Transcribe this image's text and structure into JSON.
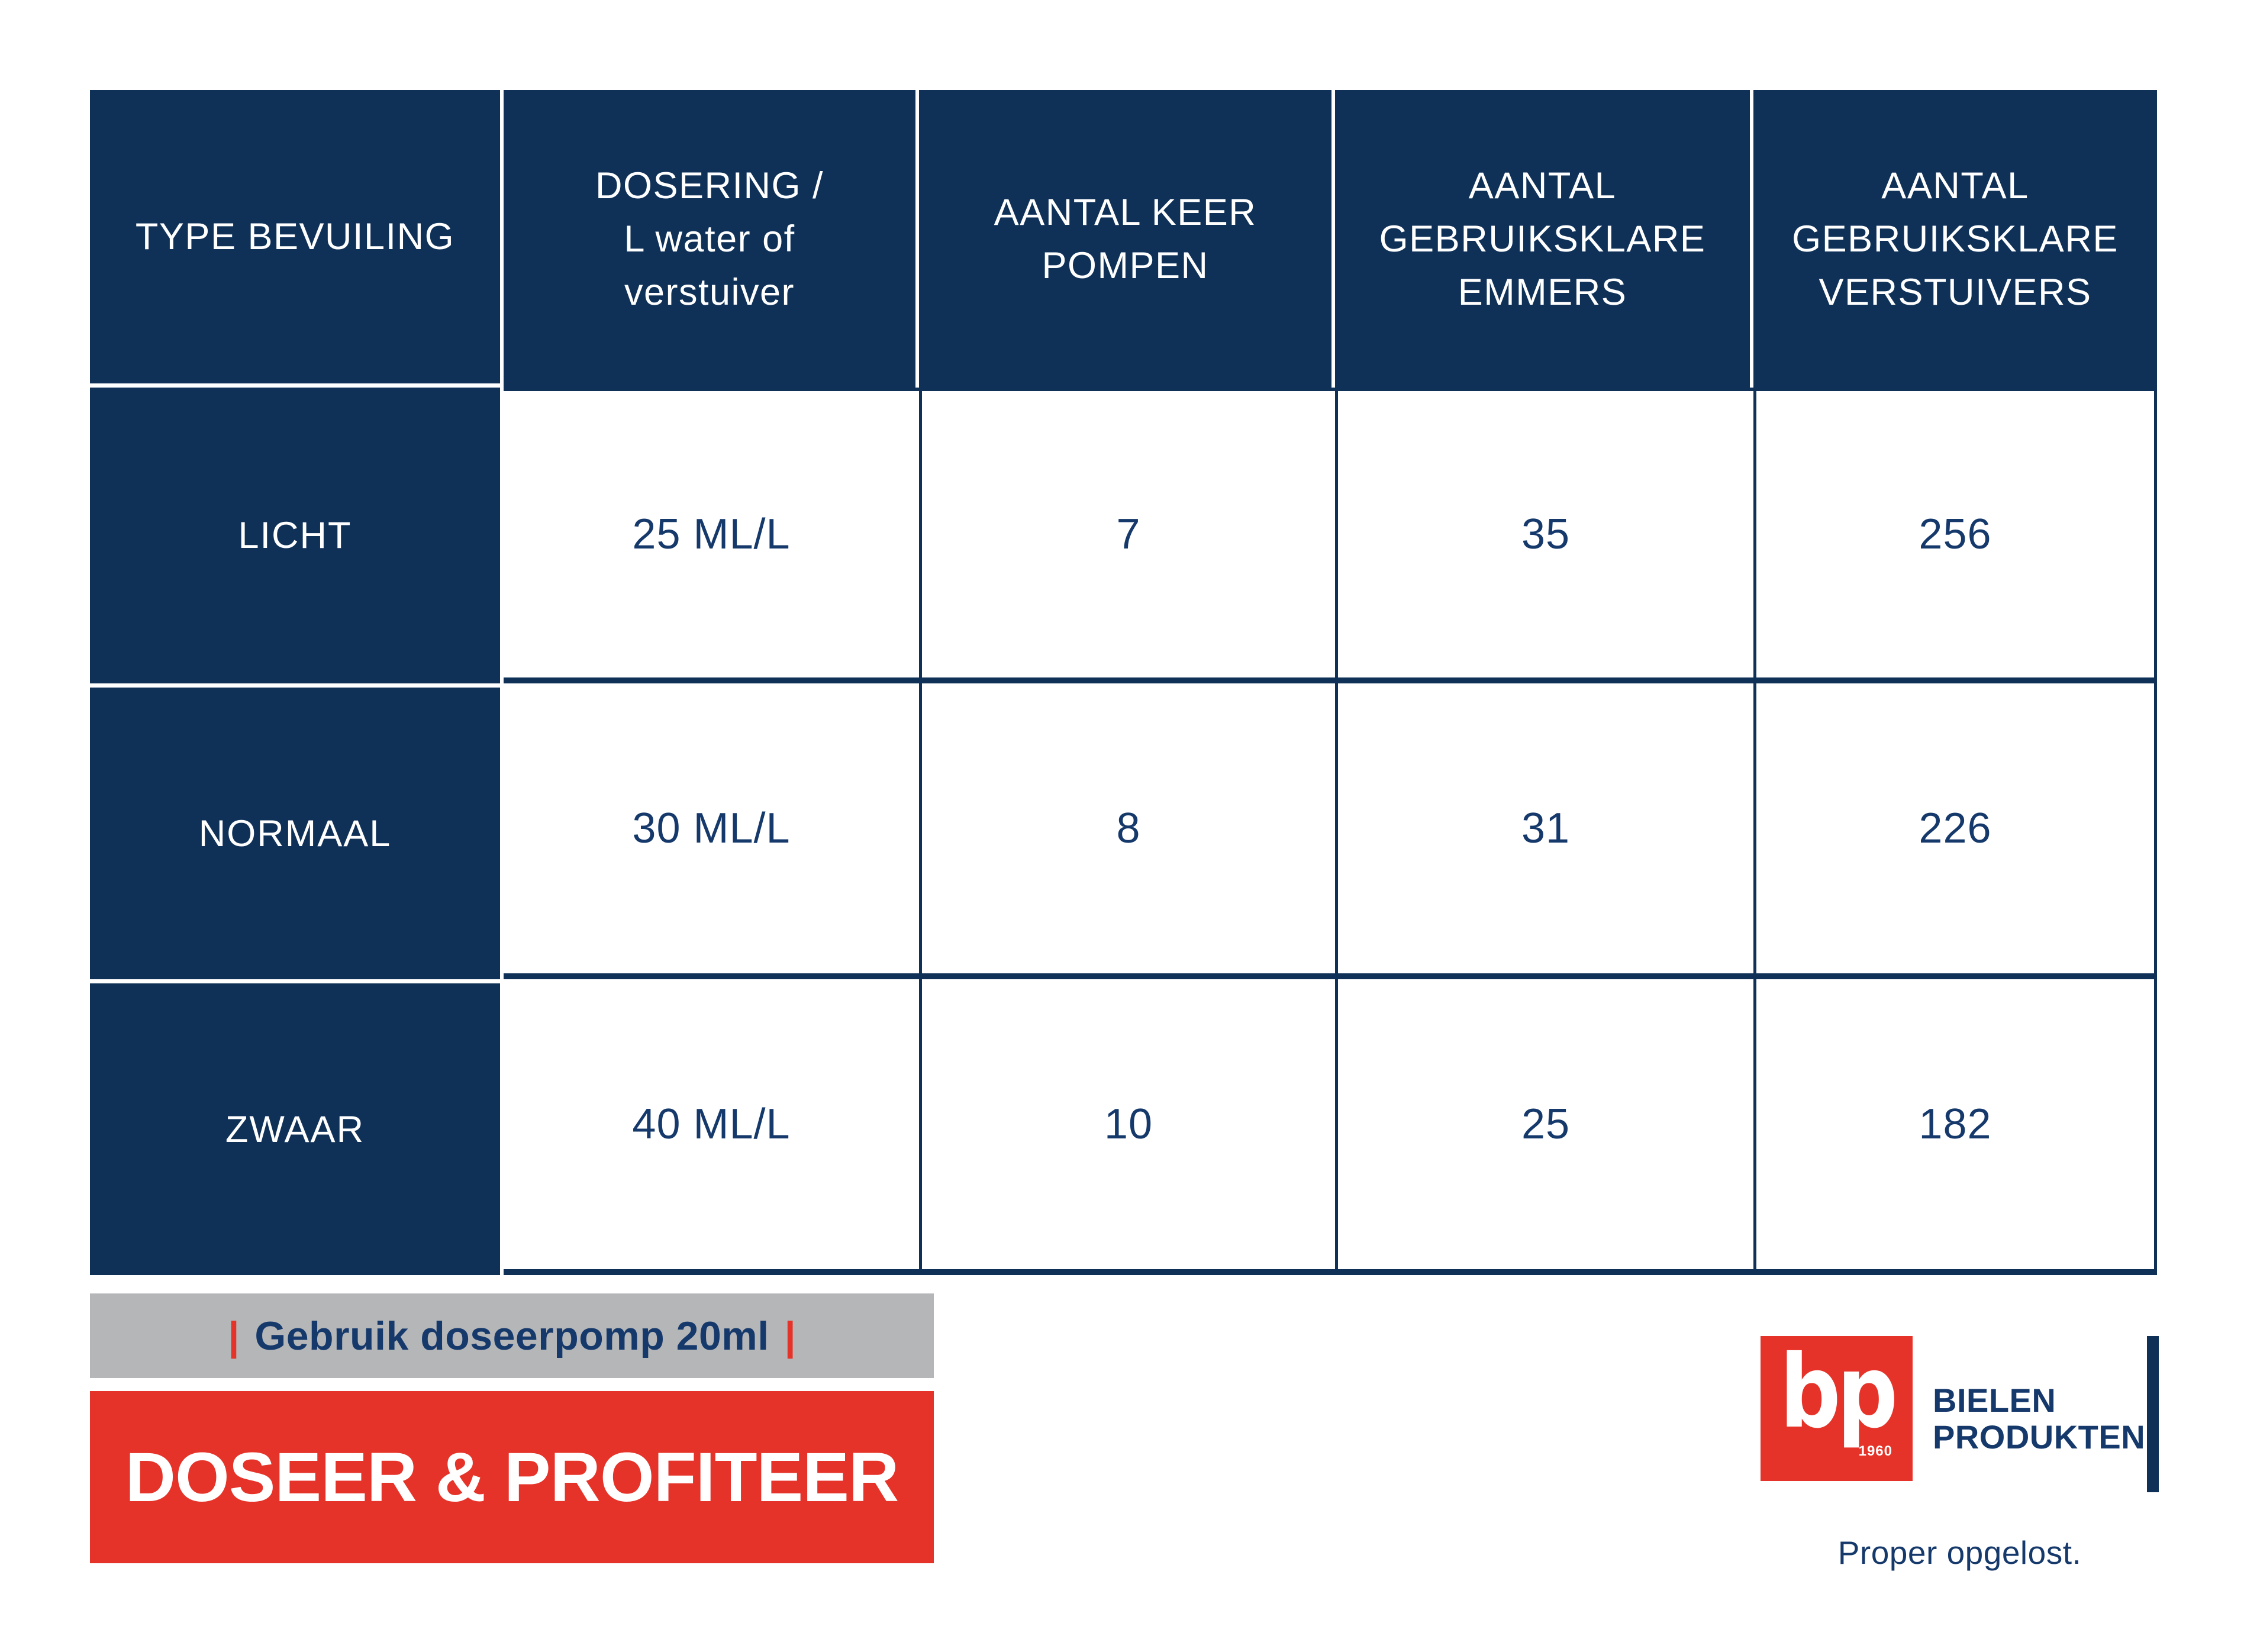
{
  "chart_data": {
    "type": "table",
    "title": "DOSEER & PROFITEER",
    "columns": [
      "TYPE BEVUILING",
      "DOSERING / L water of verstuiver",
      "AANTAL KEER POMPEN",
      "AANTAL GEBRUIKSKLARE EMMERS",
      "AANTAL GEBRUIKSKLARE VERSTUIVERS"
    ],
    "rows": [
      [
        "LICHT",
        "25 ML/L",
        7,
        35,
        256
      ],
      [
        "NORMAAL",
        "30 ML/L",
        8,
        31,
        226
      ],
      [
        "ZWAAR",
        "40 ML/L",
        10,
        25,
        182
      ]
    ],
    "note": "Gebruik doseerpomp 20ml"
  },
  "table": {
    "headers": [
      {
        "lines": [
          "TYPE BEVUILING"
        ]
      },
      {
        "lines": [
          "DOSERING /",
          "L water of",
          "verstuiver"
        ]
      },
      {
        "lines": [
          "AANTAL KEER",
          "POMPEN"
        ]
      },
      {
        "lines": [
          "AANTAL",
          "GEBRUIKSKLARE",
          "EMMERS"
        ]
      },
      {
        "lines": [
          "AANTAL",
          "GEBRUIKSKLARE",
          "VERSTUIVERS"
        ]
      }
    ],
    "rows": [
      {
        "label": "LICHT",
        "dosering": "25 ML/L",
        "pompen": "7",
        "emmers": "35",
        "verstuivers": "256"
      },
      {
        "label": "NORMAAL",
        "dosering": "30 ML/L",
        "pompen": "8",
        "emmers": "31",
        "verstuivers": "226"
      },
      {
        "label": "ZWAAR",
        "dosering": "40 ML/L",
        "pompen": "10",
        "emmers": "25",
        "verstuivers": "182"
      }
    ]
  },
  "banners": {
    "note": {
      "pipe": "|",
      "text": "Gebruik doseerpomp 20ml"
    },
    "headline": "DOSEER & PROFITEER"
  },
  "logo": {
    "letters": "bp",
    "year": "1960",
    "name_line1": "BIELEN",
    "name_line2": "PRODUKTEN",
    "tagline": "Proper opgelost."
  },
  "colors": {
    "navy": "#0f3158",
    "text_navy": "#16396b",
    "red": "#e63329",
    "gray": "#b5b6b8",
    "white": "#ffffff"
  }
}
